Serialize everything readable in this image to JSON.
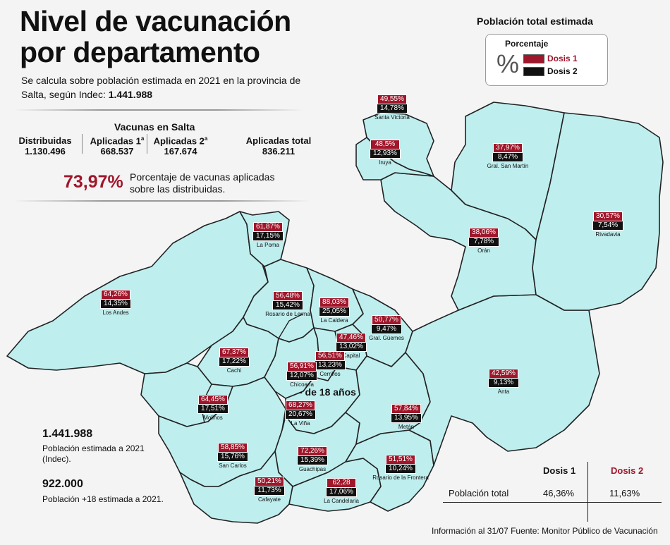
{
  "title": "Nivel de vacunación por departamento",
  "subtitle": "Se calcula sobre población estimada en 2021 en la provincia de Salta, según Indec:",
  "subtitle_total": "1.441.988",
  "legend": {
    "heading": "Población total estimada",
    "percent_title": "Porcentaje",
    "percent_symbol": "%",
    "dosis1": "Dosis 1",
    "dosis2": "Dosis 2",
    "color_dosis1": "#a0162b",
    "color_dosis2": "#111111"
  },
  "vacunas": {
    "title": "Vacunas en Salta",
    "distribuidas_label": "Distribuidas",
    "distribuidas_value": "1.130.496",
    "aplicadas1_label": "Aplicadas 1",
    "aplicadas1_sup": "a",
    "aplicadas1_value": "668.537",
    "aplicadas2_label": "Aplicadas 2",
    "aplicadas2_sup": "a",
    "aplicadas2_value": "167.674",
    "total_label": "Aplicadas total",
    "total_value": "836.211"
  },
  "porcentaje": {
    "value": "73,97%",
    "text": "Porcentaje de vacunas aplicadas sobre las distribuidas."
  },
  "departamentos": [
    {
      "name": "Santa Victoria",
      "dosis1": "49,55%",
      "dosis2": "14,78%"
    },
    {
      "name": "Iruya",
      "dosis1": "48,5%",
      "dosis2": "12,93%"
    },
    {
      "name": "Gral. San Martín",
      "dosis1": "37,97%",
      "dosis2": "8,47%"
    },
    {
      "name": "Rivadavia",
      "dosis1": "30,57%",
      "dosis2": "7,54%"
    },
    {
      "name": "Orán",
      "dosis1": "38,06%",
      "dosis2": "7,78%"
    },
    {
      "name": "La Poma",
      "dosis1": "61,87%",
      "dosis2": "17,15%"
    },
    {
      "name": "Los Andes",
      "dosis1": "64,26%",
      "dosis2": "14,35%"
    },
    {
      "name": "Rosario de Lerma",
      "dosis1": "56,48%",
      "dosis2": "15,42%"
    },
    {
      "name": "La Caldera",
      "dosis1": "88,03%",
      "dosis2": "25,05%"
    },
    {
      "name": "Gral. Güemes",
      "dosis1": "50,77%",
      "dosis2": "9,47%"
    },
    {
      "name": "Capital",
      "dosis1": "47,46%",
      "dosis2": "13,02%"
    },
    {
      "name": "Cerrillos",
      "dosis1": "56,51%",
      "dosis2": "13,23%"
    },
    {
      "name": "Chicoana",
      "dosis1": "56,91%",
      "dosis2": "12,07%"
    },
    {
      "name": "Cachi",
      "dosis1": "67,37%",
      "dosis2": "17,22%"
    },
    {
      "name": "Anta",
      "dosis1": "42,59%",
      "dosis2": "9,13%"
    },
    {
      "name": "Molinos",
      "dosis1": "64,45%",
      "dosis2": "17,51%"
    },
    {
      "name": "La Viña",
      "dosis1": "68,27%",
      "dosis2": "20,67%"
    },
    {
      "name": "Metán",
      "dosis1": "57,84%",
      "dosis2": "13,95%"
    },
    {
      "name": "San Carlos",
      "dosis1": "58,85%",
      "dosis2": "15,76%"
    },
    {
      "name": "Guachipas",
      "dosis1": "72,26%",
      "dosis2": "15,39%"
    },
    {
      "name": "Rosario de la Frontera",
      "dosis1": "51,51%",
      "dosis2": "10,24%"
    },
    {
      "name": "Cafayate",
      "dosis1": "50,21%",
      "dosis2": "11,73%"
    },
    {
      "name": "La Candelaria",
      "dosis1": "62,28",
      "dosis2": "17,06%"
    }
  ],
  "menor18": "- de 18 años",
  "poblacion": {
    "total_value": "1.441.988",
    "total_caption": "Población estimada a 2021 (Indec).",
    "mayores_value": "922.000",
    "mayores_caption": "Población +18 estimada a 2021."
  },
  "table": {
    "col1": "Dosis 1",
    "col2": "Dosis 2",
    "row_label": "Población total",
    "dosis1": "46,36%",
    "dosis2": "11,63%"
  },
  "footer": "Información al 31/07 Fuente: Monitor Público de Vacunación"
}
